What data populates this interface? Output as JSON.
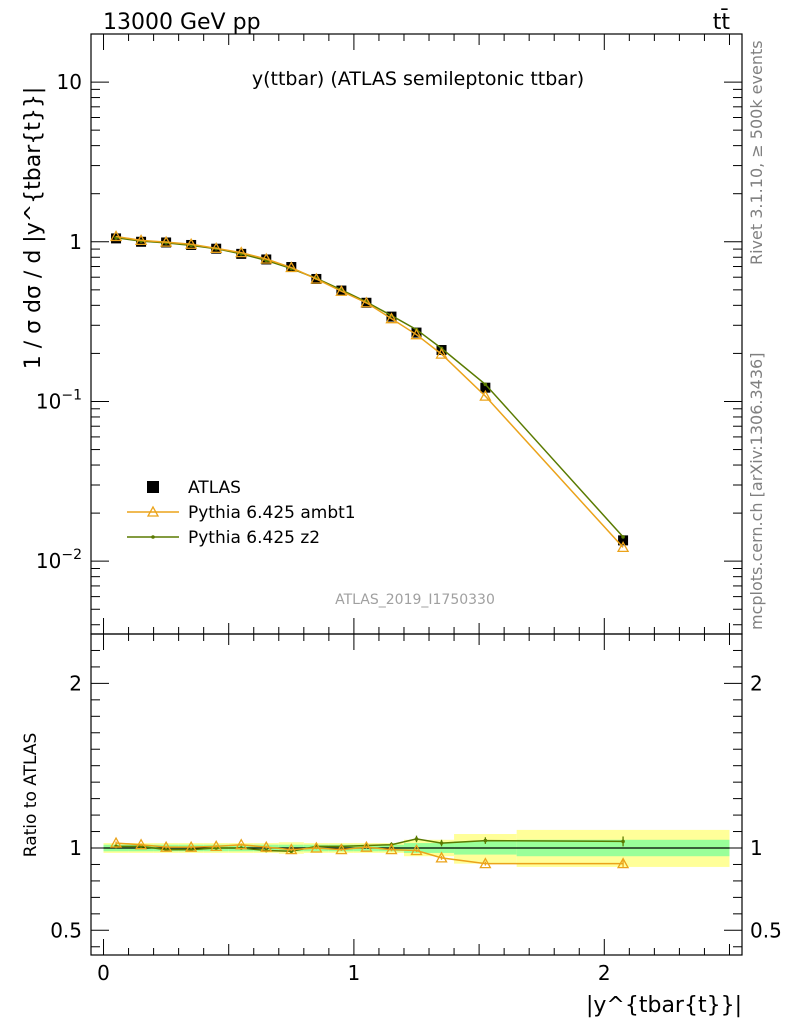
{
  "header": {
    "energy_label": "13000 GeV pp",
    "process_label": "tt̄"
  },
  "side_labels": {
    "rivet": "Rivet 3.1.10, ≥ 500k events",
    "mcplots": "mcplots.cern.ch [arXiv:1306.3436]"
  },
  "analysis_id": "ATLAS_2019_I1750330",
  "chart_data": [
    {
      "type": "line",
      "panel": "main",
      "title": "y(ttbar) (ATLAS semileptonic ttbar)",
      "ylabel": "1 / σ dσ / d |y^{tbar{t}}|",
      "yscale": "log",
      "ylim": [
        0.0035,
        20
      ],
      "xlim": [
        -0.05,
        2.55
      ],
      "y_ticks": [
        {
          "value": 0.01,
          "base": "10",
          "exp": "−2"
        },
        {
          "value": 0.1,
          "base": "10",
          "exp": "−1"
        },
        {
          "value": 1,
          "base": "1",
          "exp": ""
        },
        {
          "value": 10,
          "base": "10",
          "exp": ""
        }
      ],
      "x": [
        0.05,
        0.15,
        0.25,
        0.35,
        0.45,
        0.55,
        0.65,
        0.75,
        0.85,
        0.95,
        1.05,
        1.15,
        1.25,
        1.35,
        1.525,
        2.075
      ],
      "series": [
        {
          "name": "ATLAS",
          "color": "#000000",
          "marker": "square",
          "values": [
            1.05,
            1.0,
            0.99,
            0.955,
            0.905,
            0.84,
            0.775,
            0.695,
            0.585,
            0.495,
            0.415,
            0.34,
            0.27,
            0.21,
            0.122,
            0.0135
          ]
        },
        {
          "name": "Pythia 6.425 ambt1",
          "color": "#eba31a",
          "marker": "triangle",
          "values": [
            1.08,
            1.02,
            0.995,
            0.965,
            0.91,
            0.855,
            0.78,
            0.69,
            0.585,
            0.49,
            0.415,
            0.33,
            0.262,
            0.198,
            0.108,
            0.0122
          ]
        },
        {
          "name": "Pythia 6.425 z2",
          "color": "#5a7a00",
          "marker": "dot",
          "values": [
            1.06,
            1.01,
            0.985,
            0.95,
            0.905,
            0.84,
            0.765,
            0.68,
            0.59,
            0.5,
            0.42,
            0.345,
            0.282,
            0.215,
            0.128,
            0.0142
          ]
        }
      ]
    },
    {
      "type": "line",
      "panel": "ratio",
      "ylabel": "Ratio to ATLAS",
      "ylim": [
        0.35,
        2.3
      ],
      "xlim": [
        -0.05,
        2.55
      ],
      "x_ticks": [
        "0",
        "1",
        "2"
      ],
      "y_ticks": [
        "0.5",
        "1",
        "2"
      ],
      "xlabel": "|y^{tbar{t}}|",
      "bands": [
        {
          "x0": 0.0,
          "x1": 0.1,
          "green": [
            0.98,
            1.02
          ],
          "yellow": [
            0.97,
            1.03
          ]
        },
        {
          "x0": 0.1,
          "x1": 0.2,
          "green": [
            0.98,
            1.02
          ],
          "yellow": [
            0.97,
            1.03
          ]
        },
        {
          "x0": 0.2,
          "x1": 0.3,
          "green": [
            0.98,
            1.02
          ],
          "yellow": [
            0.97,
            1.03
          ]
        },
        {
          "x0": 0.3,
          "x1": 0.4,
          "green": [
            0.98,
            1.02
          ],
          "yellow": [
            0.97,
            1.03
          ]
        },
        {
          "x0": 0.4,
          "x1": 0.5,
          "green": [
            0.98,
            1.02
          ],
          "yellow": [
            0.97,
            1.03
          ]
        },
        {
          "x0": 0.5,
          "x1": 0.6,
          "green": [
            0.98,
            1.02
          ],
          "yellow": [
            0.97,
            1.03
          ]
        },
        {
          "x0": 0.6,
          "x1": 0.7,
          "green": [
            0.98,
            1.02
          ],
          "yellow": [
            0.97,
            1.03
          ]
        },
        {
          "x0": 0.7,
          "x1": 0.8,
          "green": [
            0.98,
            1.02
          ],
          "yellow": [
            0.965,
            1.035
          ]
        },
        {
          "x0": 0.8,
          "x1": 0.9,
          "green": [
            0.98,
            1.02
          ],
          "yellow": [
            0.97,
            1.03
          ]
        },
        {
          "x0": 0.9,
          "x1": 1.0,
          "green": [
            0.98,
            1.02
          ],
          "yellow": [
            0.97,
            1.03
          ]
        },
        {
          "x0": 1.0,
          "x1": 1.1,
          "green": [
            0.98,
            1.02
          ],
          "yellow": [
            0.97,
            1.03
          ]
        },
        {
          "x0": 1.1,
          "x1": 1.2,
          "green": [
            0.98,
            1.02
          ],
          "yellow": [
            0.97,
            1.03
          ]
        },
        {
          "x0": 1.2,
          "x1": 1.3,
          "green": [
            0.97,
            1.03
          ],
          "yellow": [
            0.95,
            1.05
          ]
        },
        {
          "x0": 1.3,
          "x1": 1.4,
          "green": [
            0.97,
            1.03
          ],
          "yellow": [
            0.95,
            1.05
          ]
        },
        {
          "x0": 1.4,
          "x1": 1.65,
          "green": [
            0.96,
            1.04
          ],
          "yellow": [
            0.905,
            1.085
          ]
        },
        {
          "x0": 1.65,
          "x1": 2.5,
          "green": [
            0.95,
            1.05
          ],
          "yellow": [
            0.885,
            1.11
          ]
        }
      ],
      "series": [
        {
          "name": "Pythia 6.425 ambt1",
          "color": "#eba31a",
          "values": [
            1.03,
            1.02,
            1.005,
            1.005,
            1.01,
            1.02,
            1.005,
            0.99,
            1.0,
            0.99,
            1.005,
            0.99,
            0.985,
            0.94,
            0.905,
            0.905
          ],
          "errors": [
            0.01,
            0.008,
            0.008,
            0.008,
            0.008,
            0.008,
            0.008,
            0.008,
            0.008,
            0.008,
            0.008,
            0.01,
            0.01,
            0.012,
            0.012,
            0.02
          ]
        },
        {
          "name": "Pythia 6.425 z2",
          "color": "#5a7a00",
          "values": [
            1.01,
            1.01,
            0.99,
            0.99,
            1.0,
            1.0,
            0.985,
            0.98,
            1.01,
            1.01,
            1.015,
            1.02,
            1.055,
            1.03,
            1.045,
            1.04
          ],
          "errors": [
            0.012,
            0.01,
            0.01,
            0.01,
            0.01,
            0.01,
            0.01,
            0.01,
            0.012,
            0.012,
            0.012,
            0.015,
            0.02,
            0.02,
            0.02,
            0.03
          ]
        }
      ]
    }
  ]
}
